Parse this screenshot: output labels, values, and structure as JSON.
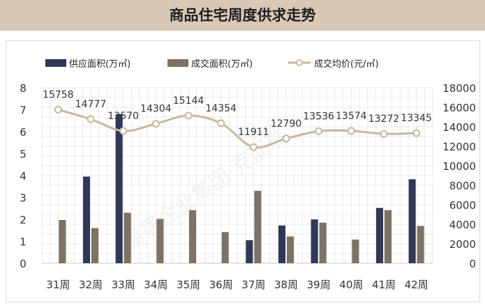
{
  "title": "商品住宅周度供求走势",
  "watermark": "易居企业集团·克而瑞",
  "chart_data": {
    "type": "bar",
    "categories": [
      "31周",
      "32周",
      "33周",
      "34周",
      "35周",
      "36周",
      "37周",
      "38周",
      "39周",
      "40周",
      "41周",
      "42周"
    ],
    "series": [
      {
        "name": "供应面积(万㎡)",
        "type": "bar",
        "axis": "left",
        "color": "#2e3a55",
        "values": [
          0,
          3.95,
          6.8,
          0,
          0,
          0,
          1.05,
          1.72,
          2.0,
          0,
          2.52,
          3.83
        ]
      },
      {
        "name": "成交面积(万㎡)",
        "type": "bar",
        "axis": "left",
        "color": "#7d7263",
        "values": [
          1.97,
          1.6,
          2.3,
          2.02,
          2.42,
          1.42,
          3.3,
          1.22,
          1.85,
          1.08,
          2.42,
          1.7
        ]
      },
      {
        "name": "成交均价(元/㎡)",
        "type": "line",
        "axis": "right",
        "color": "#c8b79d",
        "values": [
          15758,
          14777,
          13570,
          14304,
          15144,
          14354,
          11911,
          12790,
          13536,
          13574,
          13272,
          13345
        ]
      }
    ],
    "left_axis": {
      "min": 0,
      "max": 8,
      "ticks": [
        0,
        1,
        2,
        3,
        4,
        5,
        6,
        7,
        8
      ]
    },
    "right_axis": {
      "min": 0,
      "max": 18000,
      "ticks": [
        0,
        2000,
        4000,
        6000,
        8000,
        10000,
        12000,
        14000,
        16000,
        18000
      ]
    },
    "grid": true,
    "legend_position": "top"
  }
}
